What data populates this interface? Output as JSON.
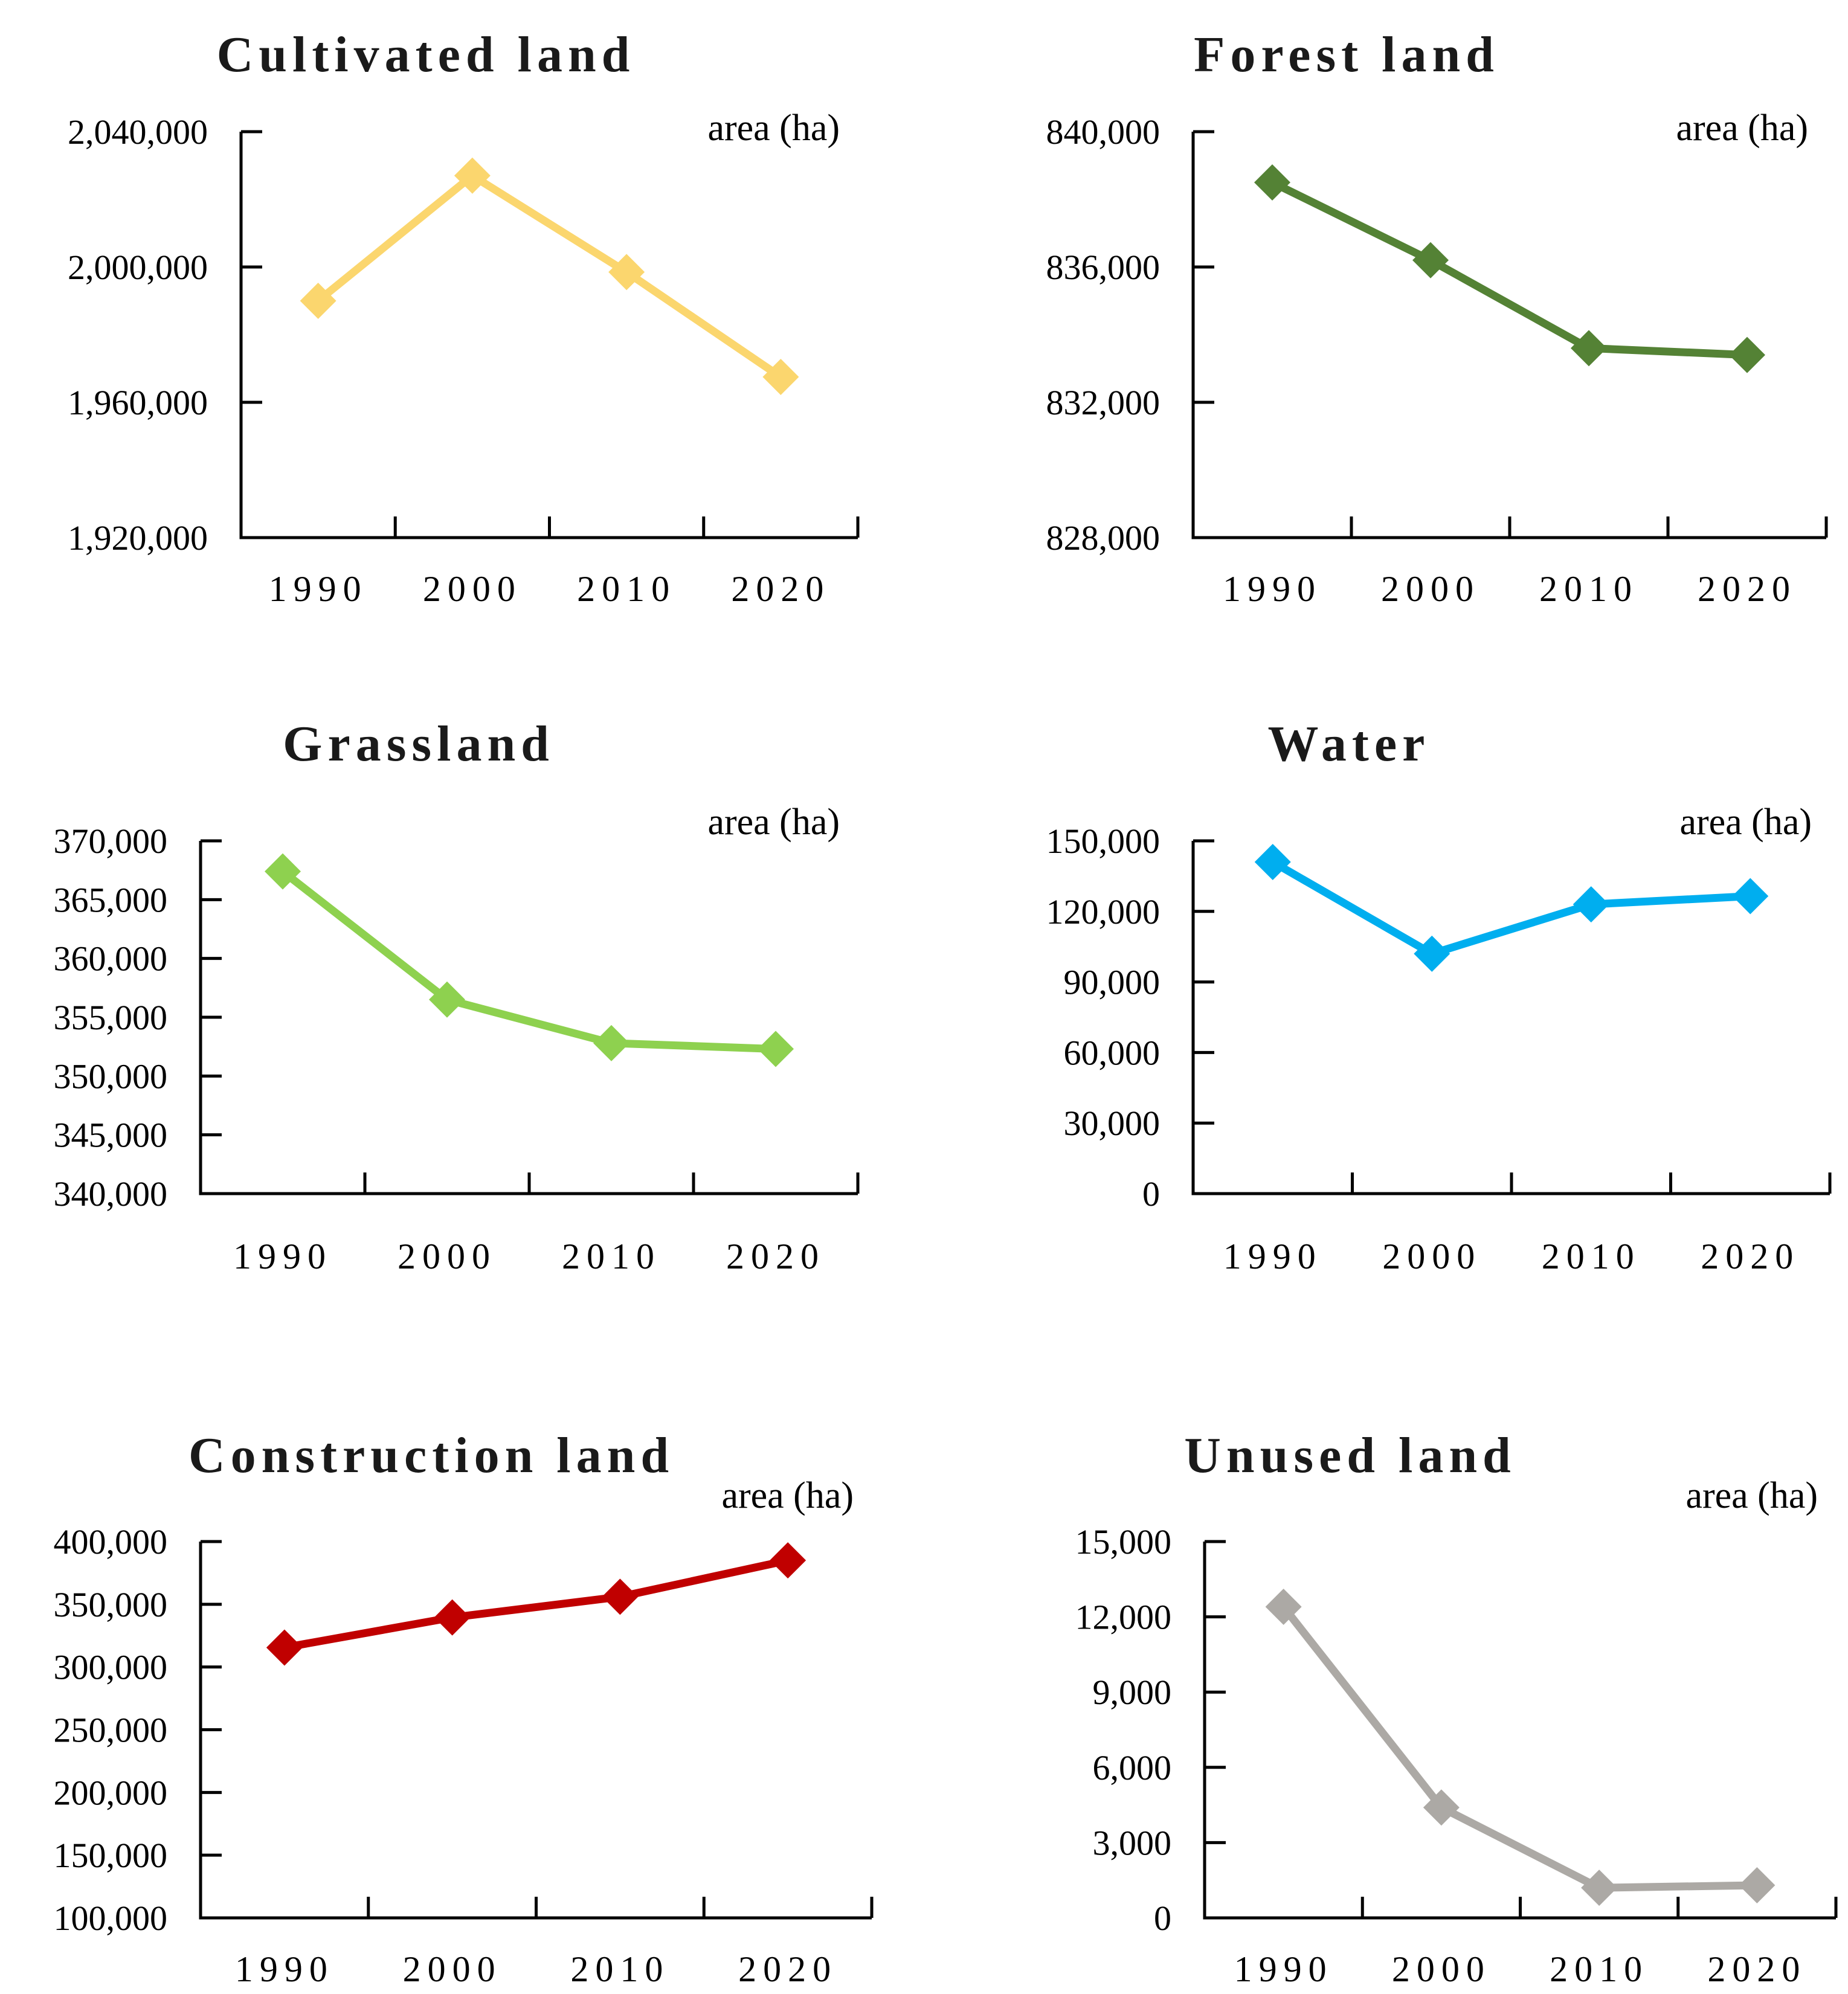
{
  "figure": {
    "description": "Six line charts of land-use area by year",
    "unit_label": "area (ha)",
    "years": [
      "1990",
      "2000",
      "2010",
      "2020"
    ]
  },
  "chart_data": [
    {
      "type": "line",
      "title": "Cultivated land",
      "ylabel": "area (ha)",
      "x": [
        "1990",
        "2000",
        "2010",
        "2020"
      ],
      "values": [
        1990000,
        2027000,
        1998500,
        1967500
      ],
      "ylim": [
        1920000,
        2040000
      ],
      "yticks": [
        1920000,
        1960000,
        2000000,
        2040000
      ],
      "color": "#FBD66E",
      "marker": "diamond",
      "grid": false,
      "legend": "none"
    },
    {
      "type": "line",
      "title": "Forest land",
      "ylabel": "area (ha)",
      "x": [
        "1990",
        "2000",
        "2010",
        "2020"
      ],
      "values": [
        838500,
        836200,
        833600,
        833400
      ],
      "ylim": [
        828000,
        840000
      ],
      "yticks": [
        828000,
        832000,
        836000,
        840000
      ],
      "color": "#548235",
      "marker": "diamond",
      "grid": false,
      "legend": "none"
    },
    {
      "type": "line",
      "title": "Grassland",
      "ylabel": "area (ha)",
      "x": [
        "1990",
        "2000",
        "2010",
        "2020"
      ],
      "values": [
        367400,
        356500,
        352800,
        352300
      ],
      "ylim": [
        340000,
        370000
      ],
      "yticks": [
        340000,
        345000,
        350000,
        355000,
        360000,
        365000,
        370000
      ],
      "color": "#8ED14F",
      "marker": "diamond",
      "grid": false,
      "legend": "none"
    },
    {
      "type": "line",
      "title": "Water",
      "ylabel": "area (ha)",
      "x": [
        "1990",
        "2000",
        "2010",
        "2020"
      ],
      "values": [
        141000,
        102000,
        123000,
        126500
      ],
      "ylim": [
        0,
        150000
      ],
      "yticks": [
        0,
        30000,
        60000,
        90000,
        120000,
        150000
      ],
      "color": "#00AEEF",
      "marker": "diamond",
      "grid": false,
      "legend": "none"
    },
    {
      "type": "line",
      "title": "Construction land",
      "ylabel": "area (ha)",
      "x": [
        "1990",
        "2000",
        "2010",
        "2020"
      ],
      "values": [
        315500,
        339500,
        356000,
        385000
      ],
      "ylim": [
        100000,
        400000
      ],
      "yticks": [
        100000,
        150000,
        200000,
        250000,
        300000,
        350000,
        400000
      ],
      "color": "#C00000",
      "marker": "diamond",
      "grid": false,
      "legend": "none"
    },
    {
      "type": "line",
      "title": "Unused land",
      "ylabel": "area (ha)",
      "x": [
        "1990",
        "2000",
        "2010",
        "2020"
      ],
      "values": [
        12400,
        4400,
        1200,
        1300
      ],
      "ylim": [
        0,
        15000
      ],
      "yticks": [
        0,
        3000,
        6000,
        9000,
        12000,
        15000
      ],
      "color": "#ACA9A5",
      "marker": "diamond",
      "grid": false,
      "legend": "none"
    }
  ]
}
